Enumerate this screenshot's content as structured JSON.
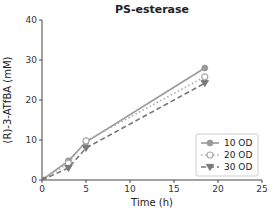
{
  "chart_data": {
    "type": "line",
    "title": "PS-esterase",
    "x_label": "Time (h)",
    "y_label": "(R)-3-ATfBA (mM)",
    "x": [
      0,
      3,
      5,
      18.5
    ],
    "series": [
      {
        "name": "10 OD",
        "color": "#999999",
        "line_style": "solid",
        "marker": "circle",
        "values": [
          0,
          4.8,
          9.5,
          28.0
        ]
      },
      {
        "name": "20 OD",
        "color": "#aaaaaa",
        "line_style": "dotted",
        "marker": "open-circle",
        "values": [
          0,
          4.2,
          9.8,
          25.8
        ]
      },
      {
        "name": "30 OD",
        "color": "#777777",
        "line_style": "dashed",
        "marker": "triangle-down",
        "values": [
          0,
          3.0,
          8.0,
          24.2
        ]
      }
    ],
    "xlim": [
      0,
      25
    ],
    "ylim": [
      0,
      40
    ],
    "xticks": [
      0,
      5,
      10,
      15,
      20,
      25
    ],
    "yticks": [
      0,
      10,
      20,
      30,
      40
    ],
    "legend": "lower right",
    "grid": false
  }
}
